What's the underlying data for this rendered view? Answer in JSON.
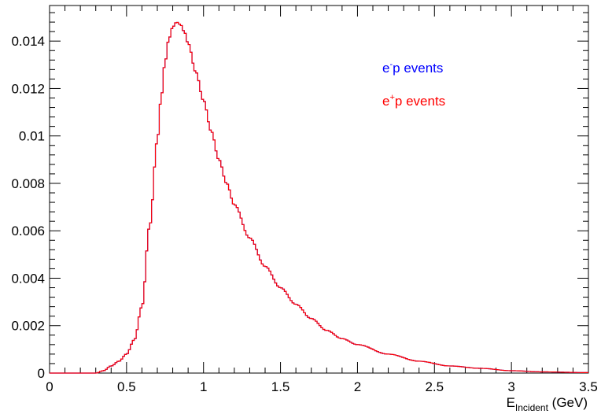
{
  "chart_data": {
    "type": "line",
    "title": "",
    "xlabel_main": "E",
    "xlabel_sub": "Incident",
    "xlabel_unit": " (GeV)",
    "ylabel": "",
    "xlim": [
      0,
      3.5
    ],
    "ylim": [
      0,
      0.0155
    ],
    "x_ticks": [
      0,
      0.5,
      1,
      1.5,
      2,
      2.5,
      3,
      3.5
    ],
    "x_tick_labels": [
      "0",
      "0.5",
      "1",
      "1.5",
      "2",
      "2.5",
      "3",
      "3.5"
    ],
    "y_ticks": [
      0,
      0.002,
      0.004,
      0.006,
      0.008,
      0.01,
      0.012,
      0.014
    ],
    "y_tick_labels": [
      "0",
      "0.002",
      "0.004",
      "0.006",
      "0.008",
      "0.01",
      "0.012",
      "0.014"
    ],
    "grid": false,
    "legend_position": "top-right",
    "series": [
      {
        "name": "e⁻p events",
        "legend_base": "e",
        "legend_sup": "-",
        "legend_rest": "p events",
        "color": "#0000ff",
        "x": [
          0.0,
          0.3,
          0.35,
          0.4,
          0.45,
          0.5,
          0.55,
          0.6,
          0.65,
          0.7,
          0.725,
          0.75,
          0.775,
          0.8,
          0.825,
          0.85,
          0.875,
          0.9,
          0.95,
          1.0,
          1.05,
          1.1,
          1.15,
          1.2,
          1.3,
          1.4,
          1.5,
          1.6,
          1.7,
          1.8,
          1.9,
          2.0,
          2.2,
          2.4,
          2.6,
          2.8,
          3.0,
          3.2,
          3.5
        ],
        "y": [
          0.0,
          0.0,
          0.0001,
          0.0003,
          0.0005,
          0.0008,
          0.0014,
          0.0028,
          0.0062,
          0.0098,
          0.0116,
          0.0131,
          0.0141,
          0.0146,
          0.0148,
          0.0147,
          0.0144,
          0.0139,
          0.0127,
          0.0115,
          0.0102,
          0.009,
          0.008,
          0.0071,
          0.0057,
          0.0045,
          0.0036,
          0.0029,
          0.0023,
          0.0018,
          0.00145,
          0.0012,
          0.0008,
          0.0005,
          0.0003,
          0.0002,
          0.0001,
          5e-05,
          2e-05
        ]
      },
      {
        "name": "e⁺p events",
        "legend_base": "e",
        "legend_sup": "+",
        "legend_rest": "p events",
        "color": "#ff0000",
        "x": [
          0.0,
          0.3,
          0.35,
          0.4,
          0.45,
          0.5,
          0.55,
          0.6,
          0.65,
          0.7,
          0.725,
          0.75,
          0.775,
          0.8,
          0.825,
          0.85,
          0.875,
          0.9,
          0.95,
          1.0,
          1.05,
          1.1,
          1.15,
          1.2,
          1.3,
          1.4,
          1.5,
          1.6,
          1.7,
          1.8,
          1.9,
          2.0,
          2.2,
          2.4,
          2.6,
          2.8,
          3.0,
          3.2,
          3.5
        ],
        "y": [
          0.0,
          0.0,
          0.0001,
          0.0003,
          0.0005,
          0.0008,
          0.0014,
          0.0028,
          0.0062,
          0.0098,
          0.0116,
          0.0131,
          0.0141,
          0.0146,
          0.0148,
          0.0147,
          0.0144,
          0.0139,
          0.0127,
          0.0115,
          0.0102,
          0.009,
          0.008,
          0.0071,
          0.0057,
          0.0045,
          0.0036,
          0.0029,
          0.0023,
          0.0018,
          0.00145,
          0.0012,
          0.0008,
          0.0005,
          0.0003,
          0.0002,
          0.0001,
          5e-05,
          2e-05
        ]
      }
    ]
  }
}
